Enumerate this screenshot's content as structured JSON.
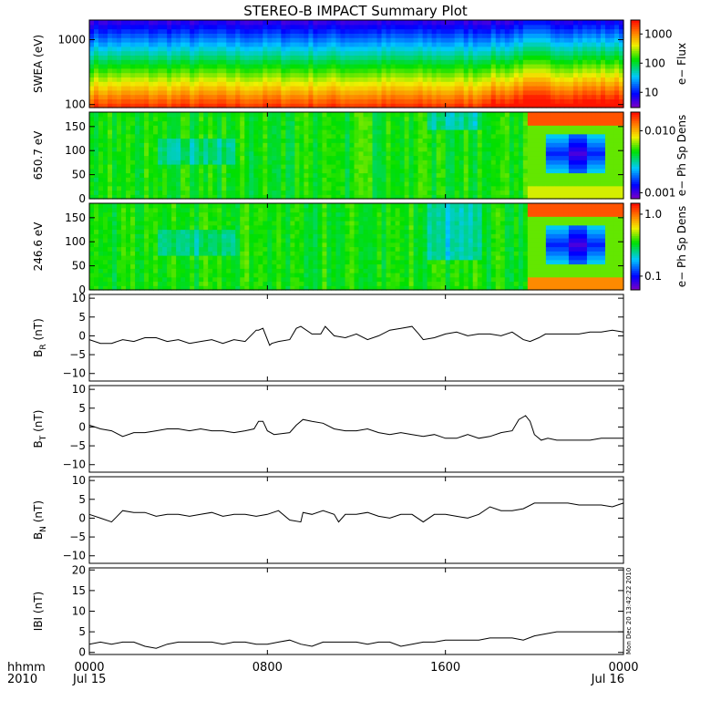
{
  "title": "STEREO-B IMPACT Summary Plot",
  "footer": {
    "time_label": "hhmm",
    "year_label": "2010",
    "date_start": "Jul 15",
    "date_end": "Jul 16"
  },
  "x_axis": {
    "range_hours": [
      0,
      24
    ],
    "ticks": [
      {
        "v": 0,
        "label": "0000"
      },
      {
        "v": 8,
        "label": "0800"
      },
      {
        "v": 16,
        "label": "1600"
      },
      {
        "v": 24,
        "label": "0000"
      }
    ]
  },
  "timestamp": "Mon Dec 20 13:42:22 2010",
  "chart_data": [
    {
      "type": "heatmap",
      "ylabel": "SWEA (eV)",
      "cbar_label": "e− Flux",
      "y_scale": "log",
      "ylim": [
        90,
        2000
      ],
      "yticks": [
        {
          "v": 100,
          "label": "100"
        },
        {
          "v": 1000,
          "label": "1000"
        }
      ],
      "cbar_scale": "log",
      "cbar_range": [
        3,
        3000
      ],
      "cbar_ticks": [
        {
          "v": 10,
          "label": "10"
        },
        {
          "v": 100,
          "label": "100"
        },
        {
          "v": 1000,
          "label": "1000"
        }
      ],
      "colors": {
        "low": "#0000ff",
        "mid": "#00e000",
        "high": "#ff2000"
      }
    },
    {
      "type": "heatmap",
      "ylabel": "650.7 eV",
      "cbar_label": "e− Ph Sp Dens",
      "ylim": [
        0,
        180
      ],
      "yticks": [
        {
          "v": 0,
          "label": "0"
        },
        {
          "v": 50,
          "label": "50"
        },
        {
          "v": 100,
          "label": "100"
        },
        {
          "v": 150,
          "label": "150"
        }
      ],
      "cbar_scale": "log",
      "cbar_range": [
        0.0008,
        0.02
      ],
      "cbar_ticks": [
        {
          "v": 0.001,
          "label": "0.001"
        },
        {
          "v": 0.01,
          "label": "0.010"
        }
      ]
    },
    {
      "type": "heatmap",
      "ylabel": "246.6 eV",
      "cbar_label": "e− Ph Sp Dens",
      "ylim": [
        0,
        180
      ],
      "yticks": [
        {
          "v": 0,
          "label": "0"
        },
        {
          "v": 50,
          "label": "50"
        },
        {
          "v": 100,
          "label": "100"
        },
        {
          "v": 150,
          "label": "150"
        }
      ],
      "cbar_scale": "log",
      "cbar_range": [
        0.06,
        1.5
      ],
      "cbar_ticks": [
        {
          "v": 0.1,
          "label": "0.1"
        },
        {
          "v": 1,
          "label": "1.0"
        }
      ]
    },
    {
      "type": "line",
      "ylabel_main": "B",
      "ylabel_sub": "R",
      "ylabel_unit": " (nT)",
      "ylim": [
        -12,
        11
      ],
      "yticks": [
        {
          "v": -10,
          "label": "−10"
        },
        {
          "v": -5,
          "label": "−5"
        },
        {
          "v": 0,
          "label": "0"
        },
        {
          "v": 5,
          "label": "5"
        },
        {
          "v": 10,
          "label": "10"
        }
      ],
      "x": [
        0,
        0.5,
        1,
        1.5,
        2,
        2.5,
        3,
        3.5,
        4,
        4.5,
        5,
        5.5,
        6,
        6.5,
        7,
        7.5,
        7.6,
        7.8,
        8.1,
        8.2,
        8.5,
        9,
        9.3,
        9.5,
        10,
        10.4,
        10.6,
        11,
        11.5,
        12,
        12.5,
        13,
        13.5,
        14,
        14.5,
        14.8,
        15,
        15.5,
        16,
        16.5,
        17,
        17.5,
        18,
        18.5,
        19,
        19.5,
        19.8,
        20.2,
        20.5,
        21,
        21.5,
        22,
        22.5,
        23,
        23.5,
        24
      ],
      "y": [
        -1,
        -2,
        -2,
        -1,
        -1.5,
        -0.5,
        -0.5,
        -1.5,
        -1,
        -2,
        -1.5,
        -1,
        -2,
        -1,
        -1.5,
        1.5,
        1.5,
        2,
        -2.5,
        -2,
        -1.5,
        -1,
        2,
        2.5,
        0.5,
        0.5,
        2.5,
        0,
        -0.5,
        0.5,
        -1,
        0,
        1.5,
        2,
        2.5,
        0.5,
        -1,
        -0.5,
        0.5,
        1,
        0,
        0.5,
        0.5,
        0,
        1,
        -1,
        -1.5,
        -0.5,
        0.5,
        0.5,
        0.5,
        0.5,
        1,
        1,
        1.5,
        1
      ]
    },
    {
      "type": "line",
      "ylabel_main": "B",
      "ylabel_sub": "T",
      "ylabel_unit": " (nT)",
      "ylim": [
        -12,
        11
      ],
      "yticks": [
        {
          "v": -10,
          "label": "−10"
        },
        {
          "v": -5,
          "label": "−5"
        },
        {
          "v": 0,
          "label": "0"
        },
        {
          "v": 5,
          "label": "5"
        },
        {
          "v": 10,
          "label": "10"
        }
      ],
      "x": [
        0,
        0.5,
        1,
        1.5,
        2,
        2.5,
        3,
        3.5,
        4,
        4.5,
        5,
        5.5,
        6,
        6.5,
        7,
        7.4,
        7.6,
        7.8,
        8,
        8.3,
        9,
        9.3,
        9.6,
        10,
        10.5,
        11,
        11.5,
        12,
        12.5,
        13,
        13.5,
        14,
        14.5,
        15,
        15.5,
        16,
        16.5,
        17,
        17.5,
        18,
        18.5,
        19,
        19.3,
        19.6,
        19.8,
        20,
        20.3,
        20.6,
        21,
        21.5,
        22,
        22.5,
        23,
        23.5,
        24
      ],
      "y": [
        0.5,
        -0.5,
        -1,
        -2.5,
        -1.5,
        -1.5,
        -1,
        -0.5,
        -0.5,
        -1,
        -0.5,
        -1,
        -1,
        -1.5,
        -1,
        -0.5,
        1.5,
        1.5,
        -1,
        -2,
        -1.5,
        0.5,
        2,
        1.5,
        1,
        -0.5,
        -1,
        -1,
        -0.5,
        -1.5,
        -2,
        -1.5,
        -2,
        -2.5,
        -2,
        -3,
        -3,
        -2,
        -3,
        -2.5,
        -1.5,
        -1,
        2,
        3,
        1.5,
        -2,
        -3.5,
        -3,
        -3.5,
        -3.5,
        -3.5,
        -3.5,
        -3,
        -3,
        -3
      ]
    },
    {
      "type": "line",
      "ylabel_main": "B",
      "ylabel_sub": "N",
      "ylabel_unit": " (nT)",
      "ylim": [
        -12,
        11
      ],
      "yticks": [
        {
          "v": -10,
          "label": "−10"
        },
        {
          "v": -5,
          "label": "−5"
        },
        {
          "v": 0,
          "label": "0"
        },
        {
          "v": 5,
          "label": "5"
        },
        {
          "v": 10,
          "label": "10"
        }
      ],
      "x": [
        0,
        0.5,
        1,
        1.5,
        2,
        2.5,
        3,
        3.5,
        4,
        4.5,
        5,
        5.5,
        6,
        6.5,
        7,
        7.5,
        8,
        8.5,
        9,
        9.5,
        9.6,
        10,
        10.5,
        11,
        11.2,
        11.5,
        12,
        12.5,
        13,
        13.5,
        14,
        14.5,
        15,
        15.5,
        16,
        16.5,
        17,
        17.5,
        18,
        18.5,
        19,
        19.5,
        20,
        20.5,
        21,
        21.5,
        22,
        22.5,
        23,
        23.5,
        24
      ],
      "y": [
        1,
        0,
        -1,
        2,
        1.5,
        1.5,
        0.5,
        1,
        1,
        0.5,
        1,
        1.5,
        0.5,
        1,
        1,
        0.5,
        1,
        2,
        -0.5,
        -1,
        1.5,
        1,
        2,
        1,
        -1,
        1,
        1,
        1.5,
        0.5,
        0,
        1,
        1,
        -1,
        1,
        1,
        0.5,
        0,
        1,
        3,
        2,
        2,
        2.5,
        4,
        4,
        4,
        4,
        3.5,
        3.5,
        3.5,
        3,
        4
      ]
    },
    {
      "type": "line",
      "ylabel_main": "IBI",
      "ylabel_sub": "",
      "ylabel_unit": " (nT)",
      "ylim": [
        -0.5,
        20.5
      ],
      "yticks": [
        {
          "v": 0,
          "label": "0"
        },
        {
          "v": 5,
          "label": "5"
        },
        {
          "v": 10,
          "label": "10"
        },
        {
          "v": 15,
          "label": "15"
        },
        {
          "v": 20,
          "label": "20"
        }
      ],
      "x": [
        0,
        0.5,
        1,
        1.5,
        2,
        2.5,
        3,
        3.5,
        4,
        4.5,
        5,
        5.5,
        6,
        6.5,
        7,
        7.5,
        8,
        8.5,
        9,
        9.5,
        10,
        10.5,
        11,
        11.5,
        12,
        12.5,
        13,
        13.5,
        14,
        14.5,
        15,
        15.5,
        16,
        16.5,
        17,
        17.5,
        18,
        18.5,
        19,
        19.5,
        20,
        20.5,
        21,
        21.5,
        22,
        22.5,
        23,
        23.5,
        24
      ],
      "y": [
        2,
        2.5,
        2,
        2.5,
        2.5,
        1.5,
        1,
        2,
        2.5,
        2.5,
        2.5,
        2.5,
        2,
        2.5,
        2.5,
        2,
        2,
        2.5,
        3,
        2,
        1.5,
        2.5,
        2.5,
        2.5,
        2.5,
        2,
        2.5,
        2.5,
        1.5,
        2,
        2.5,
        2.5,
        3,
        3,
        3,
        3,
        3.5,
        3.5,
        3.5,
        3,
        4,
        4.5,
        5,
        5,
        5,
        5,
        5,
        5,
        5
      ]
    }
  ]
}
